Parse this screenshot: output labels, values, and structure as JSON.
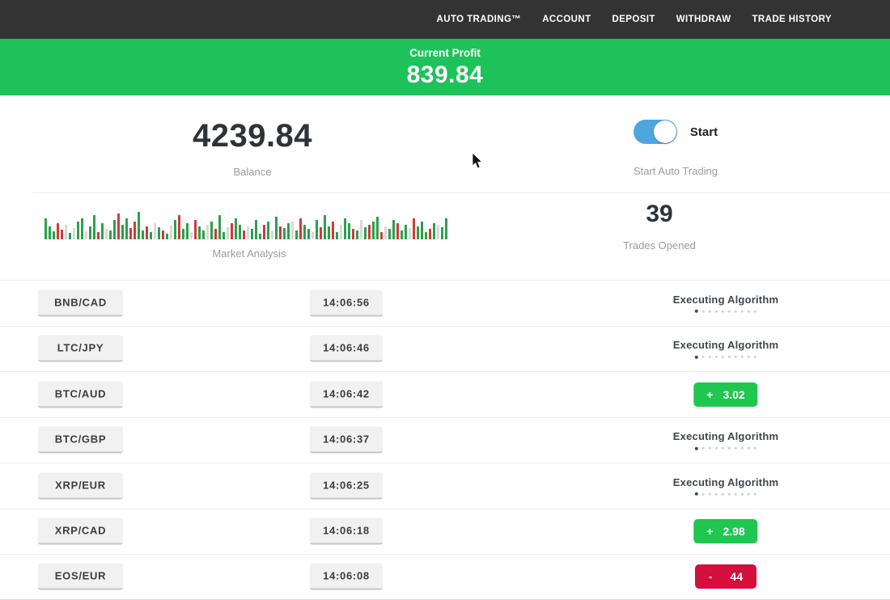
{
  "nav": {
    "items": [
      {
        "label": "AUTO TRADING™"
      },
      {
        "label": "ACCOUNT"
      },
      {
        "label": "DEPOSIT"
      },
      {
        "label": "WITHDRAW"
      },
      {
        "label": "TRADE HISTORY"
      }
    ]
  },
  "profit_banner": {
    "label": "Current Profit",
    "value": "839.84"
  },
  "stats": {
    "balance": {
      "value": "4239.84",
      "label": "Balance"
    },
    "auto_trading": {
      "toggle_label": "Start",
      "caption": "Start Auto Trading",
      "toggle_on": true
    },
    "market_analysis": {
      "label": "Market Analysis"
    },
    "trades_opened": {
      "value": "39",
      "label": "Trades Opened"
    }
  },
  "chart_data": {
    "type": "bar",
    "title": "Market Analysis",
    "xlabel": "",
    "ylabel": "",
    "description": "decorative market-pulse strip of green/red/gray volume bars, bottom-aligned, no axes",
    "colors": {
      "g": "#2ca04c",
      "r": "#cf3b3b",
      "w": "#d9d9d9"
    },
    "bars": [
      [
        26,
        "g"
      ],
      [
        16,
        "g"
      ],
      [
        10,
        "g"
      ],
      [
        20,
        "r"
      ],
      [
        12,
        "r"
      ],
      [
        18,
        "w"
      ],
      [
        8,
        "g"
      ],
      [
        14,
        "w"
      ],
      [
        22,
        "g"
      ],
      [
        26,
        "g"
      ],
      [
        10,
        "w"
      ],
      [
        16,
        "g"
      ],
      [
        30,
        "g"
      ],
      [
        9,
        "r"
      ],
      [
        20,
        "g"
      ],
      [
        13,
        "w"
      ],
      [
        11,
        "g"
      ],
      [
        24,
        "g"
      ],
      [
        32,
        "r"
      ],
      [
        18,
        "g"
      ],
      [
        26,
        "g"
      ],
      [
        14,
        "r"
      ],
      [
        22,
        "r"
      ],
      [
        34,
        "g"
      ],
      [
        11,
        "g"
      ],
      [
        16,
        "r"
      ],
      [
        9,
        "g"
      ],
      [
        20,
        "w"
      ],
      [
        15,
        "g"
      ],
      [
        11,
        "r"
      ],
      [
        7,
        "g"
      ],
      [
        17,
        "w"
      ],
      [
        24,
        "g"
      ],
      [
        30,
        "r"
      ],
      [
        13,
        "g"
      ],
      [
        20,
        "g"
      ],
      [
        9,
        "w"
      ],
      [
        24,
        "r"
      ],
      [
        16,
        "g"
      ],
      [
        11,
        "g"
      ],
      [
        18,
        "w"
      ],
      [
        22,
        "g"
      ],
      [
        13,
        "r"
      ],
      [
        30,
        "g"
      ],
      [
        9,
        "g"
      ],
      [
        15,
        "w"
      ],
      [
        20,
        "r"
      ],
      [
        26,
        "g"
      ],
      [
        18,
        "g"
      ],
      [
        11,
        "r"
      ],
      [
        16,
        "w"
      ],
      [
        13,
        "g"
      ],
      [
        24,
        "g"
      ],
      [
        7,
        "g"
      ],
      [
        18,
        "r"
      ],
      [
        22,
        "g"
      ],
      [
        11,
        "w"
      ],
      [
        28,
        "g"
      ],
      [
        16,
        "r"
      ],
      [
        14,
        "g"
      ],
      [
        20,
        "g"
      ],
      [
        22,
        "w"
      ],
      [
        11,
        "g"
      ],
      [
        26,
        "r"
      ],
      [
        18,
        "g"
      ],
      [
        13,
        "g"
      ],
      [
        9,
        "w"
      ],
      [
        24,
        "g"
      ],
      [
        15,
        "r"
      ],
      [
        30,
        "g"
      ],
      [
        16,
        "g"
      ],
      [
        22,
        "r"
      ],
      [
        9,
        "g"
      ],
      [
        18,
        "w"
      ],
      [
        26,
        "g"
      ],
      [
        20,
        "g"
      ],
      [
        13,
        "r"
      ],
      [
        11,
        "g"
      ],
      [
        24,
        "w"
      ],
      [
        15,
        "g"
      ],
      [
        18,
        "r"
      ],
      [
        22,
        "g"
      ],
      [
        28,
        "g"
      ],
      [
        9,
        "r"
      ],
      [
        16,
        "w"
      ],
      [
        13,
        "g"
      ],
      [
        24,
        "g"
      ],
      [
        20,
        "r"
      ],
      [
        11,
        "g"
      ],
      [
        18,
        "g"
      ],
      [
        14,
        "w"
      ],
      [
        26,
        "r"
      ],
      [
        16,
        "g"
      ],
      [
        22,
        "g"
      ],
      [
        9,
        "g"
      ],
      [
        13,
        "r"
      ],
      [
        20,
        "g"
      ],
      [
        18,
        "w"
      ],
      [
        15,
        "g"
      ],
      [
        26,
        "g"
      ]
    ]
  },
  "trades": {
    "executing_dots": {
      "total": 10,
      "active": 1
    },
    "rows": [
      {
        "pair": "BNB/CAD",
        "time": "14:06:56",
        "status": {
          "type": "executing",
          "label": "Executing Algorithm"
        }
      },
      {
        "pair": "LTC/JPY",
        "time": "14:06:46",
        "status": {
          "type": "executing",
          "label": "Executing Algorithm"
        }
      },
      {
        "pair": "BTC/AUD",
        "time": "14:06:42",
        "status": {
          "type": "profit",
          "sign": "+",
          "value": "3.02"
        }
      },
      {
        "pair": "BTC/GBP",
        "time": "14:06:37",
        "status": {
          "type": "executing",
          "label": "Executing Algorithm"
        }
      },
      {
        "pair": "XRP/EUR",
        "time": "14:06:25",
        "status": {
          "type": "executing",
          "label": "Executing Algorithm"
        }
      },
      {
        "pair": "XRP/CAD",
        "time": "14:06:18",
        "status": {
          "type": "profit",
          "sign": "+",
          "value": "2.98"
        }
      },
      {
        "pair": "EOS/EUR",
        "time": "14:06:08",
        "status": {
          "type": "loss",
          "sign": "-",
          "value": "44"
        }
      }
    ]
  },
  "colors": {
    "nav_bg": "#333333",
    "banner_green": "#1dc25b",
    "profit_green": "#1fc64f",
    "loss_red": "#d40f3e",
    "toggle_blue": "#4fa5e0"
  }
}
